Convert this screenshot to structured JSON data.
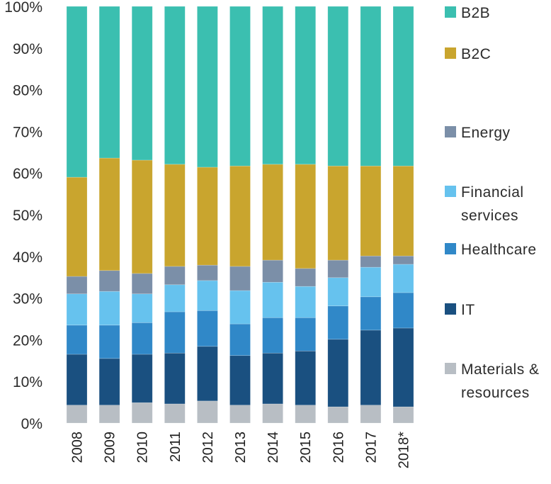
{
  "chart_data": {
    "type": "bar",
    "stacked": true,
    "normalized": true,
    "title": "",
    "xlabel": "",
    "ylabel": "",
    "ylim": [
      0,
      100
    ],
    "yticks": [
      "0%",
      "10%",
      "20%",
      "30%",
      "40%",
      "50%",
      "60%",
      "70%",
      "80%",
      "90%",
      "100%"
    ],
    "grid": false,
    "legend_position": "right",
    "categories": [
      "2008",
      "2009",
      "2010",
      "2011",
      "2012",
      "2013",
      "2014",
      "2015",
      "2016",
      "2017",
      "2018*"
    ],
    "series": [
      {
        "name": "Materials & resources",
        "color": "#b8bec4",
        "values": [
          4.3,
          4.3,
          4.9,
          4.6,
          5.3,
          4.3,
          4.6,
          4.3,
          3.9,
          4.3,
          3.9
        ]
      },
      {
        "name": "IT",
        "color": "#1a5080",
        "values": [
          12.2,
          11.2,
          11.6,
          12.2,
          13.1,
          11.9,
          12.2,
          13.0,
          16.2,
          18.0,
          18.9
        ]
      },
      {
        "name": "Healthcare",
        "color": "#3088c8",
        "values": [
          7.0,
          8.0,
          7.6,
          9.9,
          8.6,
          7.6,
          8.5,
          8.0,
          8.0,
          8.0,
          8.5
        ]
      },
      {
        "name": "Financial services",
        "color": "#66c2ee",
        "values": [
          7.5,
          8.1,
          6.9,
          6.5,
          7.2,
          8.0,
          8.5,
          7.5,
          6.8,
          7.1,
          6.8
        ]
      },
      {
        "name": "Energy",
        "color": "#7b8fa8",
        "values": [
          4.2,
          5.0,
          4.9,
          4.4,
          3.7,
          5.8,
          5.3,
          4.3,
          4.2,
          2.7,
          2.0
        ]
      },
      {
        "name": "B2C",
        "color": "#c9a52e",
        "values": [
          23.8,
          27.0,
          27.2,
          24.5,
          23.5,
          24.1,
          23.0,
          25.0,
          22.6,
          21.6,
          21.6
        ]
      },
      {
        "name": "B2B",
        "color": "#3bbfb0",
        "values": [
          41.0,
          36.4,
          36.9,
          37.9,
          38.6,
          38.3,
          37.9,
          37.9,
          38.3,
          38.3,
          38.3
        ]
      }
    ],
    "legend": [
      {
        "label_lines": [
          "B2B"
        ],
        "color": "#3bbfb0"
      },
      {
        "label_lines": [
          "B2C"
        ],
        "color": "#c9a52e"
      },
      {
        "label_lines": [
          "Energy"
        ],
        "color": "#7b8fa8"
      },
      {
        "label_lines": [
          "Financial",
          "services"
        ],
        "color": "#66c2ee"
      },
      {
        "label_lines": [
          "Healthcare"
        ],
        "color": "#3088c8"
      },
      {
        "label_lines": [
          "IT"
        ],
        "color": "#1a5080"
      },
      {
        "label_lines": [
          "Materials &",
          "resources"
        ],
        "color": "#b8bec4"
      }
    ]
  }
}
